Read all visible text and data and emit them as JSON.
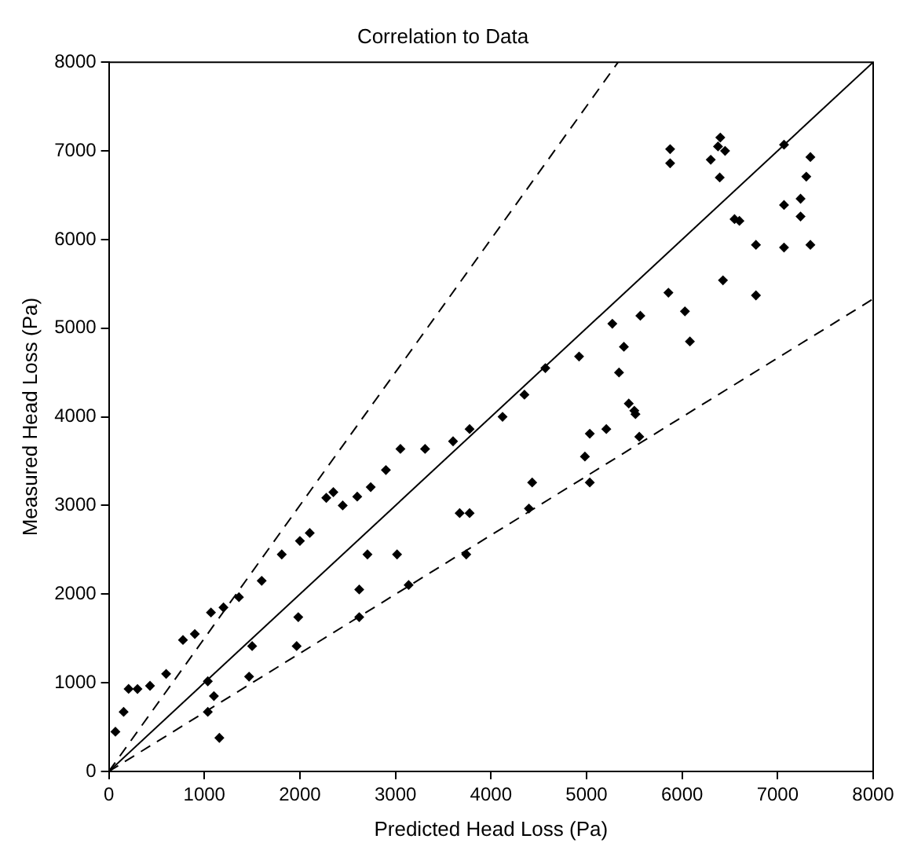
{
  "chart_data": {
    "type": "scatter",
    "title": "Correlation to Data",
    "xlabel": "Predicted Head Loss (Pa)",
    "ylabel": "Measured Head Loss (Pa)",
    "xlim": [
      0,
      8000
    ],
    "ylim": [
      0,
      8000
    ],
    "xticks": [
      0,
      1000,
      2000,
      3000,
      4000,
      5000,
      6000,
      7000,
      8000
    ],
    "yticks": [
      0,
      1000,
      2000,
      3000,
      4000,
      5000,
      6000,
      7000,
      8000
    ],
    "grid": false,
    "legend": false,
    "marker": "diamond",
    "series": [
      {
        "color": "#000000",
        "x": [
          69,
          155,
          207,
          300,
          431,
          600,
          776,
          900,
          1069,
          1200,
          1362,
          1600,
          1810,
          2000,
          2103,
          2276,
          2350,
          2448,
          2600,
          2741,
          2900,
          3052,
          3310,
          3603,
          3776,
          4121,
          4350,
          4569,
          4922,
          5270,
          5563,
          5857,
          6428,
          6773,
          1157,
          1036,
          1100,
          1036,
          1468,
          1500,
          1966,
          1983,
          2621,
          2621,
          2707,
          3017,
          3138,
          3741,
          3776,
          3672,
          4397,
          4431,
          5034,
          4983,
          5034,
          5207,
          5552,
          5500,
          5391,
          5340,
          5442,
          5512,
          6773,
          6030,
          6082,
          6376,
          6300,
          6450,
          6400,
          6394,
          6549,
          6600,
          5875,
          5875,
          7067,
          7343,
          7300,
          7240,
          7067,
          7240,
          7343,
          7067
        ],
        "values": [
          448,
          672,
          931,
          930,
          966,
          1100,
          1483,
          1550,
          1793,
          1850,
          1966,
          2150,
          2448,
          2600,
          2690,
          3086,
          3150,
          3000,
          3100,
          3207,
          3400,
          3638,
          3638,
          3724,
          3862,
          4000,
          4250,
          4550,
          4680,
          5050,
          5140,
          5400,
          5540,
          5940,
          379,
          672,
          850,
          1017,
          1069,
          1414,
          1414,
          1741,
          1741,
          2052,
          2448,
          2448,
          2103,
          2448,
          2914,
          2914,
          2966,
          3259,
          3259,
          3552,
          3810,
          3862,
          3776,
          4069,
          4790,
          4500,
          4150,
          4030,
          5370,
          5190,
          4850,
          7050,
          6900,
          7000,
          7150,
          6700,
          6230,
          6210,
          7020,
          6860,
          7070,
          6930,
          6710,
          6460,
          6390,
          6260,
          5940,
          5910
        ]
      },
      {
        "type": "line",
        "color": "#000000",
        "marker": "none",
        "line_style": "solid",
        "x": [
          0,
          8000
        ],
        "values": [
          0,
          8000
        ]
      },
      {
        "type": "line",
        "color": "#000000",
        "marker": "none",
        "line_style": "dashed",
        "x": [
          0,
          5330
        ],
        "values": [
          0,
          8000
        ]
      },
      {
        "type": "line",
        "color": "#000000",
        "marker": "none",
        "line_style": "dashed",
        "x": [
          0,
          8000
        ],
        "values": [
          0,
          5330
        ]
      }
    ]
  }
}
